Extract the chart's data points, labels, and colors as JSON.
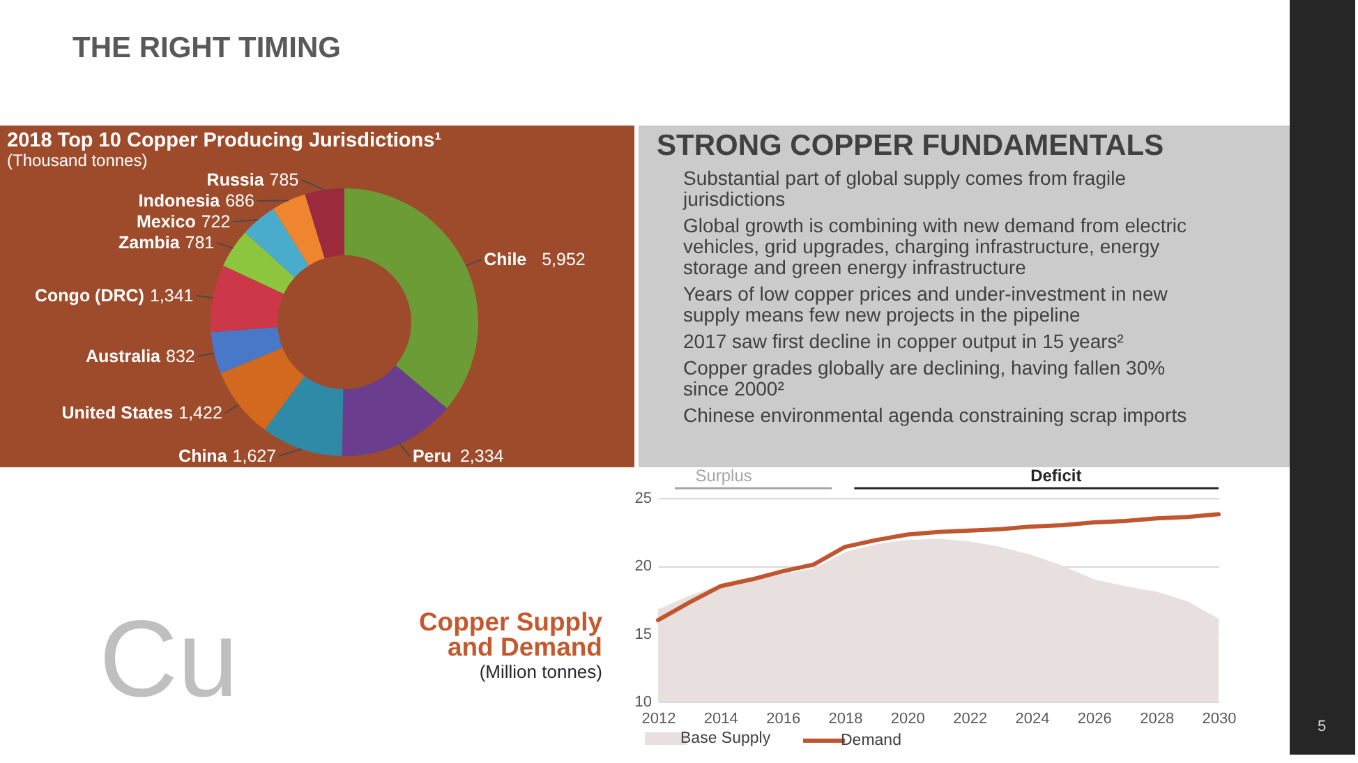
{
  "chart_data": [
    {
      "type": "other",
      "title": "THE RIGHT TIMING",
      "annotations": [
        "5"
      ]
    },
    {
      "type": "donut",
      "title": "2018 Top 10 Copper Producing Jurisdictions¹",
      "subtitle": "(Thousand tonnes)",
      "categories": [
        "Chile",
        "Peru",
        "China",
        "United States",
        "Australia",
        "Congo (DRC)",
        "Zambia",
        "Mexico",
        "Indonesia",
        "Russia"
      ],
      "values": [
        5952,
        2334,
        1627,
        1422,
        832,
        1341,
        781,
        722,
        686,
        785
      ],
      "value_labels": [
        "5,952",
        "2,334",
        "1,627",
        "1,422",
        "832",
        "1,341",
        "781",
        "722",
        "686",
        "785"
      ],
      "colors": [
        "#6b9c35",
        "#6a3d8f",
        "#2f8aa8",
        "#d2691e",
        "#4a78c8",
        "#cc3848",
        "#8cc63f",
        "#4aaccc",
        "#f0852f",
        "#9b2a3d"
      ]
    },
    {
      "type": "other",
      "title": "STRONG COPPER FUNDAMENTALS",
      "annotations": [
        "Substantial part of global supply comes from fragile jurisdictions",
        "Global growth is combining with new demand from electric vehicles, grid upgrades, charging infrastructure, energy storage and green energy infrastructure",
        "Years of low copper prices and under-investment in new supply means few new projects in the pipeline",
        "2017 saw first decline in copper output in 15 years²",
        "Copper grades globally are declining, having fallen 30% since 2000²",
        "Chinese environmental agenda constraining scrap imports"
      ]
    },
    {
      "type": "line",
      "title": "Copper Supply and Demand",
      "subtitle": "(Million tonnes)",
      "annotations": [
        "Cu",
        "Surplus",
        "Deficit"
      ],
      "x": [
        2012,
        2013,
        2014,
        2015,
        2016,
        2017,
        2018,
        2019,
        2020,
        2021,
        2022,
        2023,
        2024,
        2025,
        2026,
        2027,
        2028,
        2029,
        2030
      ],
      "series": [
        {
          "name": "Base Supply",
          "type": "area",
          "color": "#e7e0de",
          "values": [
            16.8,
            17.8,
            18.6,
            19.0,
            19.4,
            19.8,
            21.0,
            21.6,
            21.9,
            22.0,
            21.8,
            21.4,
            20.8,
            20.0,
            19.0,
            18.5,
            18.1,
            17.4,
            16.1
          ]
        },
        {
          "name": "Demand",
          "color": "#c0562f",
          "values": [
            16.0,
            17.3,
            18.5,
            19.0,
            19.6,
            20.1,
            21.4,
            21.9,
            22.3,
            22.5,
            22.6,
            22.7,
            22.9,
            23.0,
            23.2,
            23.3,
            23.5,
            23.6,
            23.8
          ]
        }
      ],
      "xlim": [
        2012,
        2030
      ],
      "xticks": [
        2012,
        2014,
        2016,
        2018,
        2020,
        2022,
        2024,
        2026,
        2028,
        2030
      ],
      "ylim": [
        10,
        25
      ],
      "yticks": [
        10,
        15,
        20,
        25
      ],
      "grid": "y",
      "legend": "bottom"
    }
  ]
}
